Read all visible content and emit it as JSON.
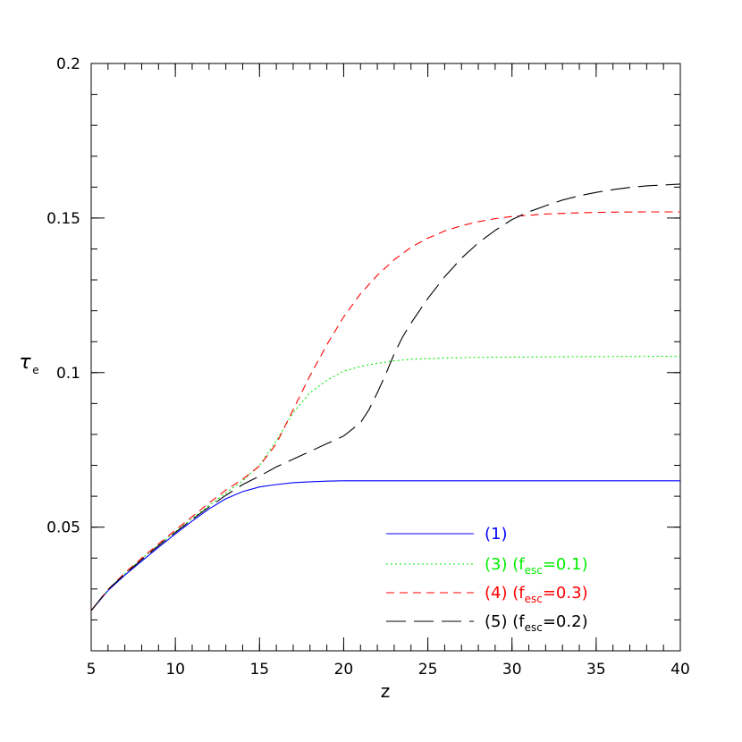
{
  "chart_data": {
    "type": "line",
    "xlabel": "z",
    "ylabel": "τ",
    "ylabel_sub": "e",
    "xlim": [
      5,
      40
    ],
    "ylim": [
      0.01,
      0.2
    ],
    "x_major_ticks": [
      5,
      10,
      15,
      20,
      25,
      30,
      35,
      40
    ],
    "x_tick_labels": [
      "5",
      "10",
      "15",
      "20",
      "25",
      "30",
      "35",
      "40"
    ],
    "x_minor_step": 1,
    "y_major_ticks": [
      0.05,
      0.1,
      0.15,
      0.2
    ],
    "y_tick_labels": [
      "0.05",
      "0.1",
      "0.15",
      "0.2"
    ],
    "y_minor_step": 0.01,
    "grid": false,
    "legend_position": "bottom-right",
    "series": [
      {
        "name": "(1)",
        "label_main": "(1)",
        "label_fesc": "",
        "color": "#0000ff",
        "dash": "",
        "x": [
          5,
          6,
          7,
          8,
          9,
          10,
          11,
          12,
          13,
          14,
          15,
          16,
          17,
          18,
          19,
          20,
          21,
          22,
          25,
          30,
          35,
          40
        ],
        "y": [
          0.023,
          0.0295,
          0.0345,
          0.039,
          0.0435,
          0.0478,
          0.052,
          0.0559,
          0.0592,
          0.0615,
          0.063,
          0.0638,
          0.0644,
          0.0647,
          0.0649,
          0.065,
          0.065,
          0.065,
          0.065,
          0.065,
          0.065,
          0.065
        ]
      },
      {
        "name": "(3) (fesc=0.1)",
        "label_main": "(3)",
        "label_fesc": "0.1",
        "color": "#00ee00",
        "dash": "2,3",
        "x": [
          5,
          6,
          7,
          8,
          9,
          10,
          11,
          12,
          13,
          14,
          15,
          16,
          17,
          18,
          19,
          20,
          21,
          22,
          23,
          24,
          26,
          28,
          30,
          35,
          40
        ],
        "y": [
          0.023,
          0.0298,
          0.035,
          0.0398,
          0.0442,
          0.0485,
          0.0528,
          0.057,
          0.061,
          0.065,
          0.07,
          0.078,
          0.087,
          0.0935,
          0.0975,
          0.1005,
          0.102,
          0.103,
          0.1038,
          0.1043,
          0.1047,
          0.1049,
          0.105,
          0.1052,
          0.1053
        ]
      },
      {
        "name": "(4) (fesc=0.3)",
        "label_main": "(4)",
        "label_fesc": "0.3",
        "color": "#ff0000",
        "dash": "9,6",
        "x": [
          5,
          6,
          7,
          8,
          9,
          10,
          11,
          12,
          13,
          14,
          15,
          16,
          17,
          18,
          19,
          20,
          21,
          22,
          23,
          24,
          25,
          26,
          27,
          28,
          29,
          30,
          32,
          34,
          36,
          38,
          40
        ],
        "y": [
          0.023,
          0.0298,
          0.0352,
          0.04,
          0.0446,
          0.049,
          0.0534,
          0.0578,
          0.062,
          0.0655,
          0.0698,
          0.077,
          0.088,
          0.099,
          0.109,
          0.118,
          0.1255,
          0.1315,
          0.1365,
          0.1405,
          0.1435,
          0.1458,
          0.1475,
          0.1488,
          0.1498,
          0.1505,
          0.1513,
          0.1517,
          0.1519,
          0.152,
          0.152
        ]
      },
      {
        "name": "(5) (fesc=0.2)",
        "label_main": "(5)",
        "label_fesc": "0.2",
        "color": "#000000",
        "dash": "22,9",
        "x": [
          5,
          6,
          7,
          8,
          9,
          10,
          11,
          12,
          13,
          14,
          15,
          16,
          17,
          18,
          19,
          20,
          21,
          21.5,
          22,
          22.5,
          23,
          23.5,
          24,
          25,
          26,
          27,
          28,
          29,
          30,
          31,
          32,
          33,
          34,
          35,
          36,
          37,
          38,
          40
        ],
        "y": [
          0.023,
          0.0298,
          0.0348,
          0.0395,
          0.044,
          0.0483,
          0.0525,
          0.0565,
          0.0603,
          0.0638,
          0.0665,
          0.0695,
          0.072,
          0.0745,
          0.077,
          0.0795,
          0.0838,
          0.088,
          0.0935,
          0.0995,
          0.106,
          0.1115,
          0.116,
          0.124,
          0.131,
          0.137,
          0.142,
          0.146,
          0.1495,
          0.152,
          0.154,
          0.1558,
          0.1572,
          0.1583,
          0.1592,
          0.1599,
          0.1604,
          0.161
        ]
      }
    ]
  }
}
